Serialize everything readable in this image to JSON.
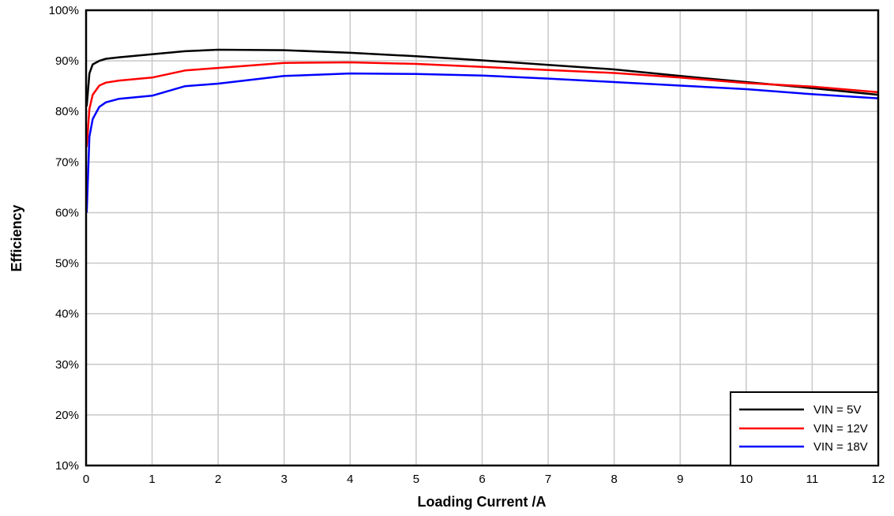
{
  "chart_data": {
    "type": "line",
    "title": "",
    "xlabel": "Loading Current /A",
    "ylabel": "Efficiency",
    "xlim": [
      0,
      12
    ],
    "ylim": [
      10,
      100
    ],
    "x_ticks": [
      "0",
      "1",
      "2",
      "3",
      "4",
      "5",
      "6",
      "7",
      "8",
      "9",
      "10",
      "11",
      "12"
    ],
    "y_ticks": [
      "10%",
      "20%",
      "30%",
      "40%",
      "50%",
      "60%",
      "70%",
      "80%",
      "90%",
      "100%"
    ],
    "grid": true,
    "legend_position": "bottom-right",
    "series": [
      {
        "name": "VIN = 5V",
        "color": "#000000",
        "x": [
          0.01,
          0.05,
          0.1,
          0.2,
          0.3,
          0.5,
          1,
          1.5,
          2,
          3,
          4,
          5,
          6,
          7,
          8,
          9,
          10,
          11,
          12
        ],
        "y": [
          81,
          87.5,
          89.3,
          90,
          90.4,
          90.7,
          91.3,
          91.9,
          92.2,
          92.1,
          91.6,
          90.9,
          90.1,
          89.2,
          88.3,
          87,
          85.8,
          84.6,
          83.3
        ]
      },
      {
        "name": "VIN = 12V",
        "color": "#ff0000",
        "x": [
          0.01,
          0.05,
          0.1,
          0.2,
          0.3,
          0.5,
          1,
          1.5,
          2,
          3,
          4,
          5,
          6,
          7,
          8,
          9,
          10,
          11,
          12
        ],
        "y": [
          73,
          80.5,
          83.3,
          85.1,
          85.7,
          86.1,
          86.7,
          88.1,
          88.6,
          89.6,
          89.7,
          89.4,
          88.8,
          88.2,
          87.6,
          86.7,
          85.6,
          84.9,
          83.8
        ]
      },
      {
        "name": "VIN = 18V",
        "color": "#0000ff",
        "x": [
          0.01,
          0.05,
          0.1,
          0.2,
          0.3,
          0.5,
          1,
          1.5,
          2,
          3,
          4,
          5,
          6,
          7,
          8,
          9,
          10,
          11,
          12
        ],
        "y": [
          60,
          75,
          78.5,
          80.9,
          81.8,
          82.5,
          83.1,
          85,
          85.5,
          87,
          87.5,
          87.4,
          87.1,
          86.5,
          85.8,
          85.1,
          84.4,
          83.4,
          82.6
        ]
      }
    ]
  }
}
